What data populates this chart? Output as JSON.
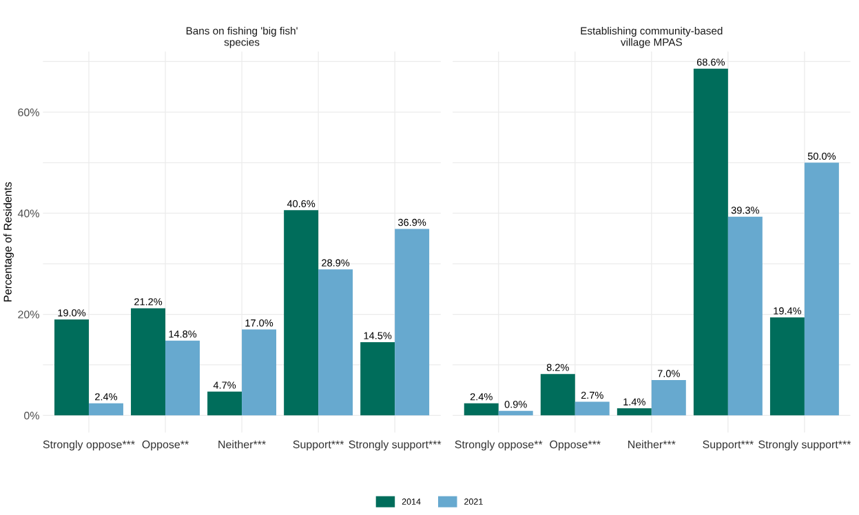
{
  "chart_data": [
    {
      "type": "bar",
      "title": "Bans on fishing 'big fish'\nspecies",
      "ylabel": "Percentage of Residents",
      "categories": [
        "Strongly oppose***",
        "Oppose**",
        "Neither***",
        "Support***",
        "Strongly support***"
      ],
      "series": [
        {
          "name": "2014",
          "color": "#006d5b",
          "values": [
            19.0,
            21.2,
            4.7,
            40.6,
            14.5
          ],
          "value_labels": [
            "19.0%",
            "21.2%",
            "4.7%",
            "40.6%",
            "14.5%"
          ]
        },
        {
          "name": "2021",
          "color": "#67a9cf",
          "values": [
            2.4,
            14.8,
            17.0,
            28.9,
            36.9
          ],
          "value_labels": [
            "2.4%",
            "14.8%",
            "17.0%",
            "28.9%",
            "36.9%"
          ]
        }
      ],
      "ylim": [
        -3.4,
        72.0
      ],
      "yticks": [
        {
          "value": 0,
          "label": "0%"
        },
        {
          "value": 10,
          "label": null
        },
        {
          "value": 20,
          "label": "20%"
        },
        {
          "value": 30,
          "label": null
        },
        {
          "value": 40,
          "label": "40%"
        },
        {
          "value": 50,
          "label": null
        },
        {
          "value": 60,
          "label": "60%"
        },
        {
          "value": 70,
          "label": null
        }
      ],
      "grid": true,
      "legend": "bottom"
    },
    {
      "type": "bar",
      "title": "Establishing community-based\nvillage MPAS",
      "categories": [
        "Strongly oppose**",
        "Oppose***",
        "Neither***",
        "Support***",
        "Strongly support***"
      ],
      "series": [
        {
          "name": "2014",
          "color": "#006d5b",
          "values": [
            2.4,
            8.2,
            1.4,
            68.6,
            19.4
          ],
          "value_labels": [
            "2.4%",
            "8.2%",
            "1.4%",
            "68.6%",
            "19.4%"
          ]
        },
        {
          "name": "2021",
          "color": "#67a9cf",
          "values": [
            0.9,
            2.7,
            7.0,
            39.3,
            50.0
          ],
          "value_labels": [
            "0.9%",
            "2.7%",
            "7.0%",
            "39.3%",
            "50.0%"
          ]
        }
      ],
      "ylim": [
        -3.4,
        72.0
      ],
      "yticks": [
        {
          "value": 0,
          "label": null
        },
        {
          "value": 10,
          "label": null
        },
        {
          "value": 20,
          "label": null
        },
        {
          "value": 30,
          "label": null
        },
        {
          "value": 40,
          "label": null
        },
        {
          "value": 50,
          "label": null
        },
        {
          "value": 60,
          "label": null
        },
        {
          "value": 70,
          "label": null
        }
      ],
      "grid": true,
      "tick_labels": "x",
      "legend": false
    }
  ]
}
